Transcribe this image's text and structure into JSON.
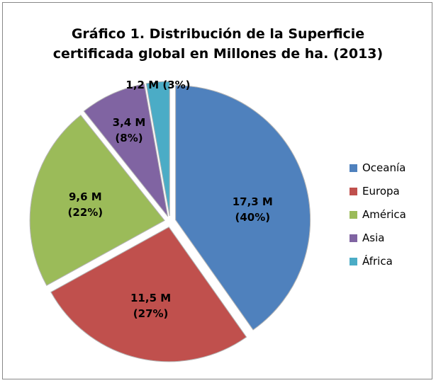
{
  "chart_data": {
    "type": "pie",
    "title": "Gráfico 1. Distribución de la Superficie certificada global en Millones de ha. (2013)",
    "categories": [
      "Oceanía",
      "Europa",
      "América",
      "Asia",
      "África"
    ],
    "values": [
      17.3,
      11.5,
      9.6,
      3.4,
      1.2
    ],
    "value_labels": [
      "17,3 M (40%)",
      "11,5 M (27%)",
      "9,6 M (22%)",
      "3,4 M (8%)",
      "1,2 M (3%)"
    ],
    "colors": [
      "#4f81bd",
      "#c0504d",
      "#9bbb59",
      "#8064a2",
      "#4bacc6"
    ],
    "legend": "right"
  }
}
